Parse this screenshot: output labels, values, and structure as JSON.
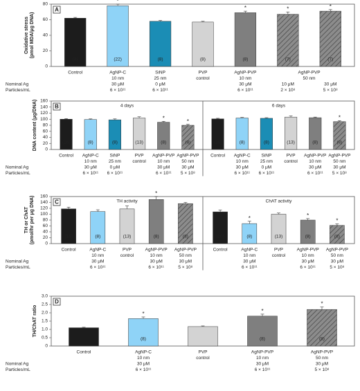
{
  "chart_data": [
    {
      "type": "bar",
      "panel": "A",
      "ylabel": [
        "Oxidative stress",
        "(pmol MDA/μg DNA)"
      ],
      "ylim": [
        0,
        80
      ],
      "yticks": [
        0,
        20,
        40,
        60,
        80
      ],
      "row_labels": [
        "Nominal Ag",
        "Particles/mL"
      ],
      "groups": [
        {
          "categories": [
            {
              "name": [
                "Control"
              ]
            },
            {
              "name": [
                "AgNP-C"
              ],
              "size": "10 nm",
              "dose": "30 μM",
              "particles": "6 × 10¹¹"
            },
            {
              "name": [
                "SiNP"
              ],
              "size": "25 nm",
              "dose": "0 μM",
              "particles": "6 × 10¹¹"
            },
            {
              "name": [
                "PVP",
                "control"
              ]
            },
            {
              "name": [
                "AgNP-PVP"
              ],
              "size": "10 nm",
              "dose": "30 μM",
              "particles": "6 × 10¹¹"
            },
            {
              "name": [
                "AgNP-PVP",
                "50 nm"
              ],
              "dose": "10 μM",
              "particles": "2 × 10⁸"
            },
            {
              "dose": "30 μM",
              "particles": "5 × 10⁸"
            }
          ],
          "values": [
            62,
            78,
            58,
            57,
            69,
            67,
            71
          ],
          "errors": [
            1,
            2,
            1,
            1,
            2,
            3,
            2
          ],
          "n_labels": [
            "(8)",
            "(22)",
            "(8)",
            "(8)",
            "(8)",
            "(7)",
            "(7)"
          ],
          "stars": [
            null,
            "*",
            null,
            null,
            "*",
            "*",
            "*"
          ],
          "colors": [
            "#1c1c1c",
            "#8fd3f7",
            "#1b8db5",
            "#d3d3d3",
            "#7f7f7f",
            "#8c8c8c",
            "#8c8c8c"
          ],
          "hatched": [
            false,
            false,
            false,
            false,
            false,
            true,
            true
          ]
        }
      ]
    },
    {
      "type": "bar",
      "panel": "B",
      "ylabel": [
        "DNA content (μg/DNA)"
      ],
      "ylim": [
        0,
        160
      ],
      "yticks": [
        0,
        20,
        40,
        60,
        80,
        100,
        120,
        140,
        160
      ],
      "row_labels": [
        "Nominal Ag",
        "Particles/mL"
      ],
      "groups": [
        {
          "title": "4 days",
          "categories": [
            {
              "name": [
                "Control"
              ]
            },
            {
              "name": [
                "AgNP-C"
              ],
              "size": "10 nm",
              "dose": "30 μM",
              "particles": "6 × 10¹¹"
            },
            {
              "name": [
                "SiNP"
              ],
              "size": "25 nm",
              "dose": "0 μM",
              "particles": "6 × 10¹¹"
            },
            {
              "name": [
                "PVP",
                "control"
              ]
            },
            {
              "name": [
                "AgNP-PVP"
              ],
              "size": "10 nm",
              "dose": "30 μM",
              "particles": "6 × 10¹¹"
            },
            {
              "name": [
                "AgNP-PVP"
              ],
              "size": "50 nm",
              "dose": "30 μM",
              "particles": "5 × 10⁸"
            }
          ],
          "values": [
            100,
            99,
            98,
            104,
            90,
            80
          ],
          "errors": [
            2,
            2,
            3,
            4,
            3,
            3
          ],
          "n_labels": [
            "(16)",
            "(8)",
            "(8)",
            "(13)",
            "(8)",
            "(8)"
          ],
          "stars": [
            null,
            null,
            null,
            null,
            "*",
            "*"
          ],
          "colors": [
            "#1c1c1c",
            "#8fd3f7",
            "#1b8db5",
            "#d3d3d3",
            "#7f7f7f",
            "#8c8c8c"
          ],
          "hatched": [
            false,
            false,
            false,
            false,
            false,
            true
          ]
        },
        {
          "title": "6 days",
          "categories": [
            {
              "name": [
                "Control"
              ]
            },
            {
              "name": [
                "AgNP-C"
              ],
              "size": "10 nm",
              "dose": "30 μM",
              "particles": "6 × 10¹¹"
            },
            {
              "name": [
                "SiNP"
              ],
              "size": "25 nm",
              "dose": "0 μM",
              "particles": "6 × 10¹¹"
            },
            {
              "name": [
                "PVP",
                "control"
              ]
            },
            {
              "name": [
                "AgNP-PVP"
              ],
              "size": "10 nm",
              "dose": "30 μM",
              "particles": "6 × 10¹¹"
            },
            {
              "name": [
                "AgNP-PVP"
              ],
              "size": "50 nm",
              "dose": "30 μM",
              "particles": "5 × 10⁸"
            }
          ],
          "values": [
            101,
            104,
            103,
            107,
            105,
            92
          ],
          "errors": [
            2,
            2,
            2,
            4,
            2,
            3
          ],
          "n_labels": [
            "(16)",
            "(8)",
            "(8)",
            "(13)",
            "(8)",
            "(8)"
          ],
          "stars": [
            null,
            null,
            null,
            null,
            null,
            "*"
          ],
          "colors": [
            "#1c1c1c",
            "#8fd3f7",
            "#1b8db5",
            "#d3d3d3",
            "#7f7f7f",
            "#8c8c8c"
          ],
          "hatched": [
            false,
            false,
            false,
            false,
            false,
            true
          ]
        }
      ]
    },
    {
      "type": "bar",
      "panel": "C",
      "ylabel": [
        "TH or ChAT",
        "(pmol/hr per μg DNA)"
      ],
      "ylim": [
        0,
        160
      ],
      "yticks": [
        0,
        20,
        40,
        60,
        80,
        100,
        120,
        140,
        160
      ],
      "row_labels": [
        "Nominal Ag",
        "Particles/mL"
      ],
      "groups": [
        {
          "title": "TH activity",
          "categories": [
            {
              "name": [
                "Control"
              ]
            },
            {
              "name": [
                "AgNP-C"
              ],
              "size": "10 nm",
              "dose": "30 μM",
              "particles": "6 × 10¹¹"
            },
            {
              "name": [
                "PVP",
                "control"
              ]
            },
            {
              "name": [
                "AgNP-PVP"
              ],
              "size": "10 nm",
              "dose": "30 μM",
              "particles": "6 × 10¹¹"
            },
            {
              "name": [
                "AgNP-PVP"
              ],
              "size": "50 nm",
              "dose": "30 μM",
              "particles": "5 × 10⁸"
            }
          ],
          "values": [
            118,
            109,
            118,
            150,
            136
          ],
          "errors": [
            6,
            6,
            10,
            10,
            4
          ],
          "n_labels": [
            "(16)",
            "(8)",
            "(13)",
            "(8)",
            "(8)"
          ],
          "stars": [
            null,
            null,
            null,
            "*",
            null
          ],
          "colors": [
            "#1c1c1c",
            "#8fd3f7",
            "#d3d3d3",
            "#7f7f7f",
            "#8c8c8c"
          ],
          "hatched": [
            false,
            false,
            false,
            false,
            true
          ]
        },
        {
          "title": "ChAT activity",
          "categories": [
            {
              "name": [
                "Control"
              ]
            },
            {
              "name": [
                "AgNP-C"
              ],
              "size": "10 nm",
              "dose": "30 μM",
              "particles": "6 × 10¹¹"
            },
            {
              "name": [
                "PVP",
                "control"
              ]
            },
            {
              "name": [
                "AgNP-PVP"
              ],
              "size": "10 nm",
              "dose": "30 μM",
              "particles": "6 × 10¹¹"
            },
            {
              "name": [
                "AgNP-PVP"
              ],
              "size": "50 nm",
              "dose": "30 μM",
              "particles": "5 × 10⁸"
            }
          ],
          "values": [
            108,
            68,
            100,
            80,
            62
          ],
          "errors": [
            6,
            8,
            4,
            5,
            5
          ],
          "n_labels": [
            "(20)",
            "(8)",
            "(13)",
            "(8)",
            "(8)"
          ],
          "stars": [
            null,
            "*",
            null,
            "*",
            "*"
          ],
          "colors": [
            "#1c1c1c",
            "#8fd3f7",
            "#d3d3d3",
            "#7f7f7f",
            "#8c8c8c"
          ],
          "hatched": [
            false,
            false,
            false,
            false,
            true
          ]
        }
      ]
    },
    {
      "type": "bar",
      "panel": "D",
      "ylabel": [
        "TH/ChAT ratio"
      ],
      "ylim": [
        0,
        3
      ],
      "yticks": [
        0,
        0.5,
        {
          "value": 1,
          "label": "1.0"
        },
        1.5,
        {
          "value": 2,
          "label": "2.0"
        },
        2.5,
        {
          "value": 3,
          "label": "3.0"
        }
      ],
      "row_labels": [
        "Nominal Ag",
        "Particles/mL"
      ],
      "groups": [
        {
          "categories": [
            {
              "name": [
                "Control"
              ]
            },
            {
              "name": [
                "AgNP-C"
              ],
              "size": "10 nm",
              "dose": "30 μM",
              "particles": "6 × 10¹¹"
            },
            {
              "name": [
                "PVP",
                "control"
              ]
            },
            {
              "name": [
                "AgNP-PVP"
              ],
              "size": "10 nm",
              "dose": "30 μM",
              "particles": "6 × 10¹¹"
            },
            {
              "name": [
                "AgNP-PVP"
              ],
              "size": "50 nm",
              "dose": "30 μM",
              "particles": "5 × 10⁸"
            }
          ],
          "values": [
            1.1,
            1.65,
            1.17,
            1.8,
            2.2
          ],
          "errors": [
            0.03,
            0.1,
            0.04,
            0.12,
            0.15
          ],
          "n_labels": [
            null,
            "(8)",
            null,
            "(8)",
            "(8)"
          ],
          "stars": [
            null,
            "*",
            null,
            "*",
            "*"
          ],
          "colors": [
            "#1c1c1c",
            "#8fd3f7",
            "#d3d3d3",
            "#7f7f7f",
            "#8c8c8c"
          ],
          "hatched": [
            false,
            false,
            false,
            false,
            true
          ]
        }
      ]
    }
  ]
}
